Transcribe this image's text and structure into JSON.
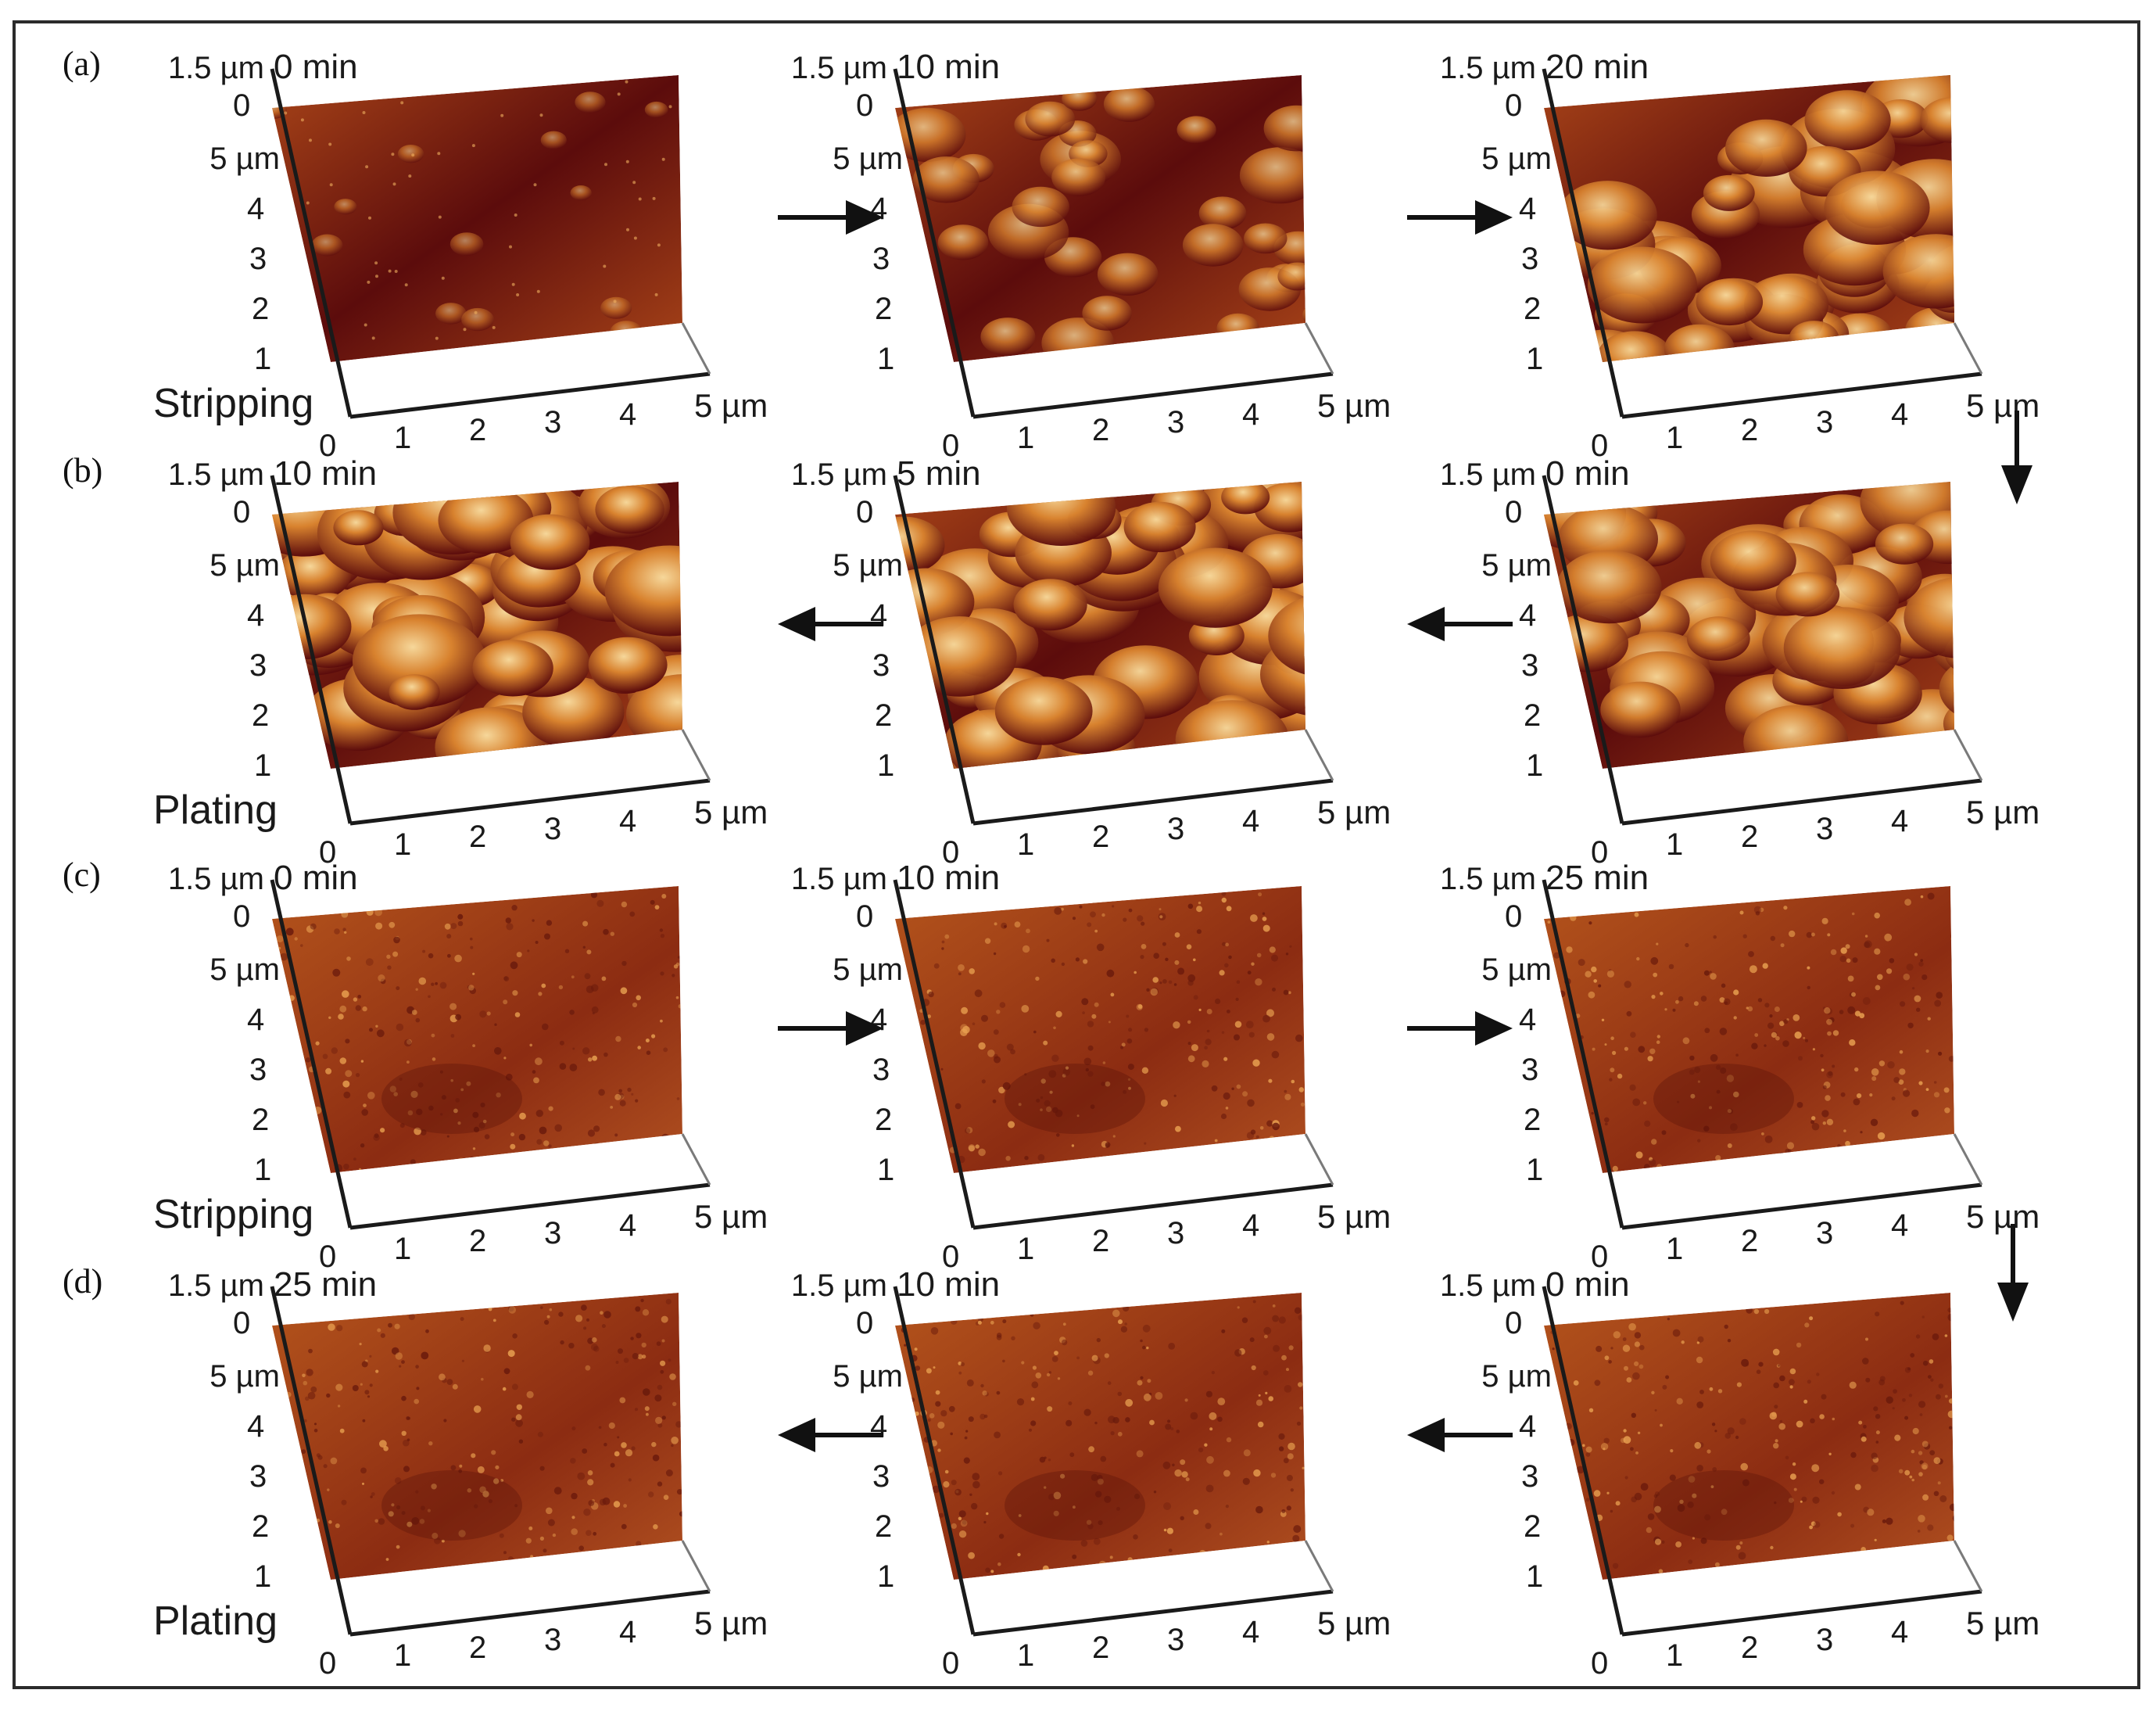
{
  "rows": [
    {
      "panel_label": "(a)",
      "side_label": "Stripping",
      "direction": "right",
      "surface": "coarse",
      "plots": [
        {
          "time": "0 min",
          "roughness": 0.15
        },
        {
          "time": "10 min",
          "roughness": 0.55
        },
        {
          "time": "20 min",
          "roughness": 0.85
        }
      ]
    },
    {
      "panel_label": "(b)",
      "side_label": "Plating",
      "direction": "left",
      "surface": "coarse",
      "plots": [
        {
          "time": "10 min",
          "roughness": 1.0
        },
        {
          "time": "5 min",
          "roughness": 0.95
        },
        {
          "time": "0 min",
          "roughness": 0.85
        }
      ]
    },
    {
      "panel_label": "(c)",
      "side_label": "Stripping",
      "direction": "right",
      "surface": "fine",
      "plots": [
        {
          "time": "0 min",
          "roughness": 0.25
        },
        {
          "time": "10 min",
          "roughness": 0.25
        },
        {
          "time": "25 min",
          "roughness": 0.25
        }
      ]
    },
    {
      "panel_label": "(d)",
      "side_label": "Plating",
      "direction": "left",
      "surface": "fine",
      "plots": [
        {
          "time": "25 min",
          "roughness": 0.25
        },
        {
          "time": "10 min",
          "roughness": 0.25
        },
        {
          "time": "0 min",
          "roughness": 0.25
        }
      ]
    }
  ],
  "axes": {
    "z_top": "1.5 µm",
    "z_zero": "0",
    "y_top": "5 µm",
    "y_ticks": [
      "4",
      "3",
      "2",
      "1"
    ],
    "x_ticks": [
      "0",
      "1",
      "2",
      "3",
      "4"
    ],
    "x_end": "5 µm"
  },
  "colors": {
    "deep": "#5c0c0c",
    "mid": "#a84418",
    "light": "#d8822e",
    "highlight": "#f6d79a",
    "frame": "#2b2b2b"
  }
}
